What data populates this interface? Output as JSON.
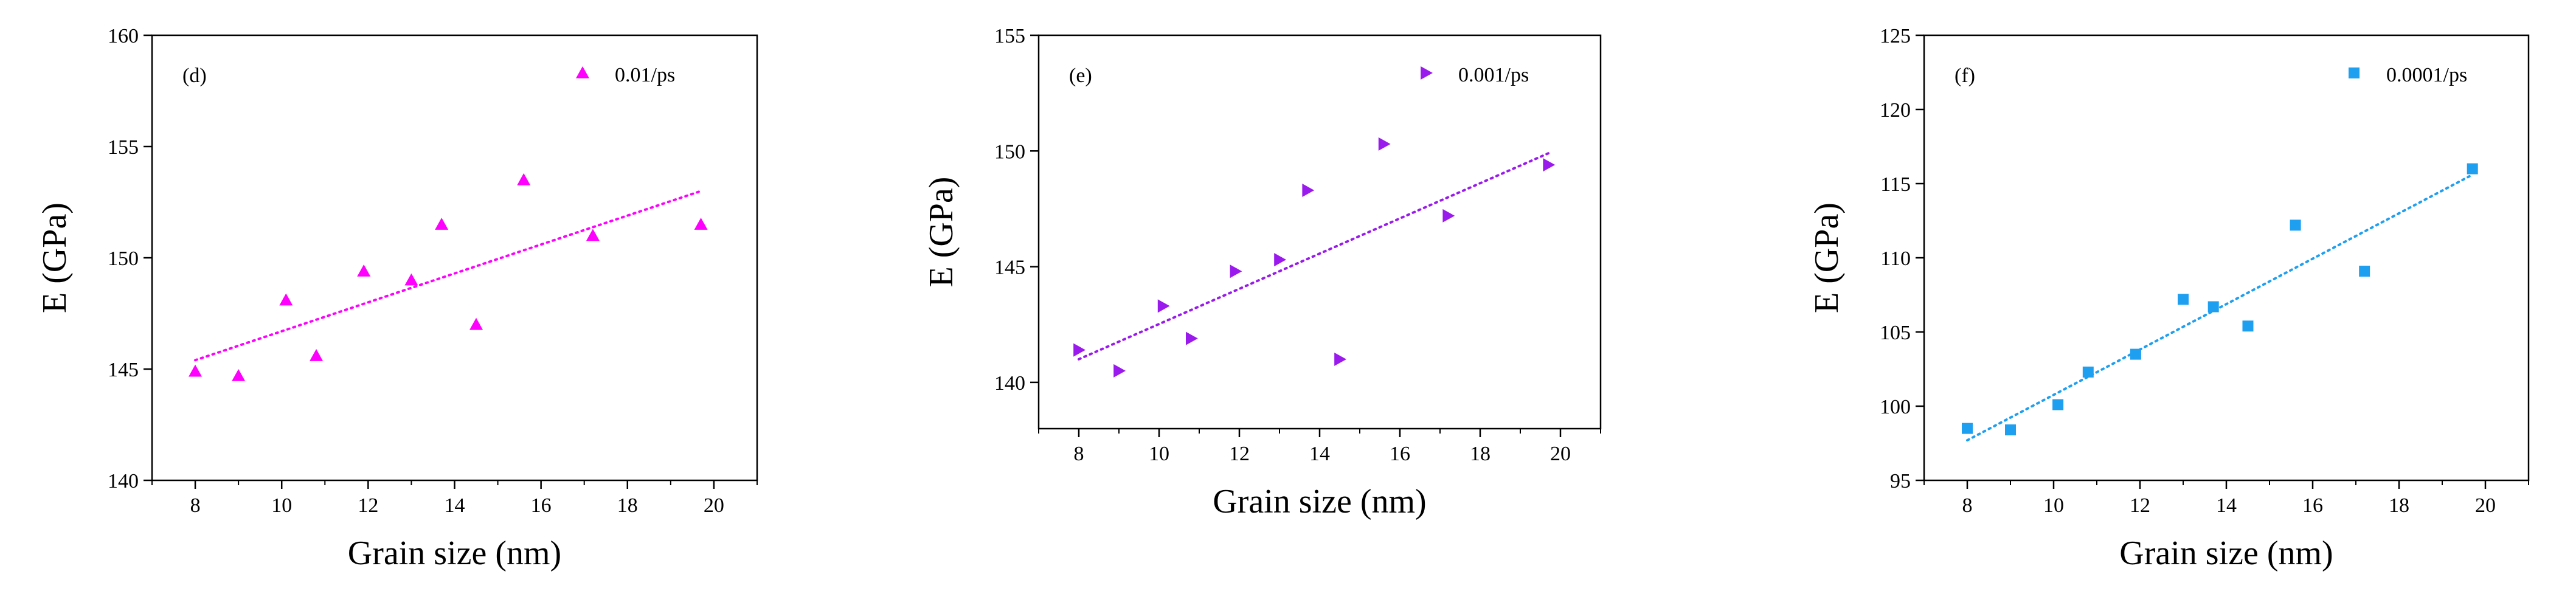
{
  "chart_data": [
    {
      "type": "scatter",
      "panel_label": "(d)",
      "xlabel": "Grain size (nm)",
      "ylabel": "E (GPa)",
      "xlim": [
        7,
        21
      ],
      "ylim": [
        140,
        160
      ],
      "xticks": [
        8,
        10,
        12,
        14,
        16,
        18,
        20
      ],
      "yticks": [
        140,
        145,
        150,
        155,
        160
      ],
      "grid": false,
      "legend_position": "top-right",
      "series": [
        {
          "name": "0.01/ps",
          "marker": "triangle-up",
          "color": "#ff00ff",
          "x": [
            8.0,
            9.0,
            10.1,
            10.8,
            11.9,
            13.0,
            13.7,
            14.5,
            15.6,
            17.2,
            19.7
          ],
          "y": [
            144.9,
            144.7,
            148.1,
            145.6,
            149.4,
            149.0,
            151.5,
            147.0,
            153.5,
            151.0,
            151.5
          ]
        }
      ],
      "fit": {
        "style": "dotted",
        "color": "#ff00ff",
        "x": [
          8.0,
          19.7
        ],
        "y": [
          145.4,
          153.0
        ]
      }
    },
    {
      "type": "scatter",
      "panel_label": "(e)",
      "xlabel": "Grain size (nm)",
      "ylabel": "E (GPa)",
      "xlim": [
        7,
        21
      ],
      "ylim": [
        138,
        155
      ],
      "xticks": [
        8,
        10,
        12,
        14,
        16,
        18,
        20
      ],
      "yticks": [
        140,
        145,
        150,
        155
      ],
      "grid": false,
      "legend_position": "top-right",
      "series": [
        {
          "name": "0.001/ps",
          "marker": "triangle-right",
          "color": "#9a1aee",
          "x": [
            8.0,
            9.0,
            10.1,
            10.8,
            11.9,
            13.0,
            13.7,
            14.5,
            15.6,
            17.2,
            19.7
          ],
          "y": [
            141.4,
            140.5,
            143.3,
            141.9,
            144.8,
            145.3,
            148.3,
            141.0,
            150.3,
            147.2,
            149.4
          ]
        }
      ],
      "fit": {
        "style": "dotted",
        "color": "#9a1aee",
        "x": [
          8.0,
          19.7
        ],
        "y": [
          141.0,
          149.9
        ]
      }
    },
    {
      "type": "scatter",
      "panel_label": "(f)",
      "xlabel": "Grain size (nm)",
      "ylabel": "E (GPa)",
      "xlim": [
        7,
        21
      ],
      "ylim": [
        95,
        125
      ],
      "xticks": [
        8,
        10,
        12,
        14,
        16,
        18,
        20
      ],
      "yticks": [
        95,
        100,
        105,
        110,
        115,
        120,
        125
      ],
      "grid": false,
      "legend_position": "top-right",
      "series": [
        {
          "name": "0.0001/ps",
          "marker": "square",
          "color": "#1e9ff0",
          "x": [
            8.0,
            9.0,
            10.1,
            10.8,
            11.9,
            13.0,
            13.7,
            14.5,
            15.6,
            17.2,
            19.7
          ],
          "y": [
            98.5,
            98.4,
            100.1,
            102.3,
            103.5,
            107.2,
            106.7,
            105.4,
            112.2,
            109.1,
            116.0
          ]
        }
      ],
      "fit": {
        "style": "dotted",
        "color": "#1e9ff0",
        "x": [
          8.0,
          19.7
        ],
        "y": [
          97.7,
          115.6
        ]
      }
    }
  ]
}
